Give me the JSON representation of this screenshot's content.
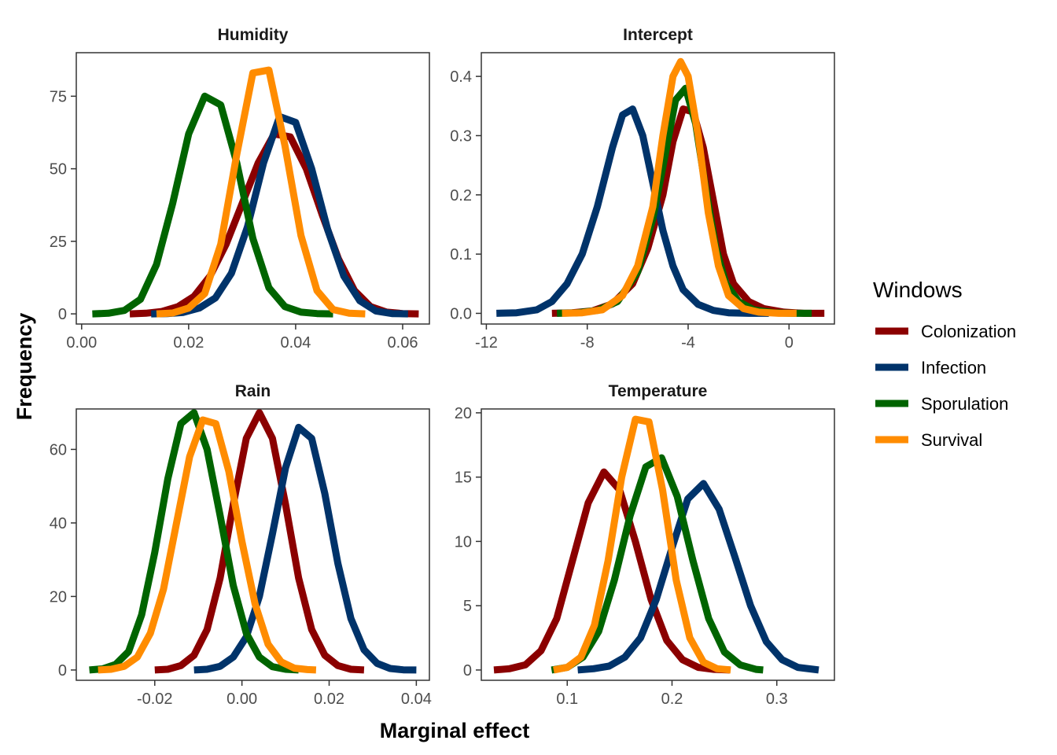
{
  "chart_data": {
    "type": "line",
    "xlabel": "Marginal effect",
    "ylabel": "Frequency",
    "legend": {
      "title": "Windows",
      "placement": "right",
      "entries": [
        "Colonization",
        "Infection",
        "Sporulation",
        "Survival"
      ]
    },
    "colors": {
      "Colonization": "#8b0000",
      "Infection": "#00336a",
      "Sporulation": "#006400",
      "Survival": "#ff8c00"
    },
    "grid": false,
    "panels": [
      {
        "title": "Humidity",
        "xlim": [
          -0.001,
          0.065
        ],
        "ylim": [
          -3.5,
          90
        ],
        "xticks": [
          0,
          0.02,
          0.04,
          0.06
        ],
        "xtick_labels": [
          "0.00",
          "0.02",
          "0.04",
          "0.06"
        ],
        "yticks": [
          0,
          25,
          50,
          75
        ],
        "ytick_labels": [
          "0",
          "25",
          "50",
          "75"
        ],
        "series": [
          {
            "name": "Colonization",
            "x": [
              0.009,
              0.012,
              0.015,
              0.018,
              0.021,
              0.024,
              0.027,
              0.03,
              0.033,
              0.036,
              0.039,
              0.042,
              0.045,
              0.048,
              0.051,
              0.054,
              0.057,
              0.06,
              0.063
            ],
            "y": [
              0.0,
              0.2,
              0.8,
              2.5,
              6,
              13,
              24,
              38,
              52,
              62,
              61,
              50,
              34,
              19,
              8,
              2.5,
              0.6,
              0.1,
              0.0
            ]
          },
          {
            "name": "Infection",
            "x": [
              0.013,
              0.016,
              0.019,
              0.022,
              0.025,
              0.028,
              0.031,
              0.034,
              0.037,
              0.04,
              0.043,
              0.046,
              0.049,
              0.052,
              0.055,
              0.058,
              0.061
            ],
            "y": [
              0.0,
              0.1,
              0.5,
              2,
              5.5,
              14,
              30,
              52,
              68,
              66,
              50,
              29,
              13,
              4.5,
              1,
              0.1,
              0.0
            ]
          },
          {
            "name": "Sporulation",
            "x": [
              0.002,
              0.005,
              0.008,
              0.011,
              0.014,
              0.017,
              0.02,
              0.023,
              0.026,
              0.029,
              0.032,
              0.035,
              0.038,
              0.041,
              0.044,
              0.047
            ],
            "y": [
              0.0,
              0.2,
              1.2,
              5,
              17,
              38,
              62,
              75,
              72,
              52,
              26,
              9,
              2.5,
              0.6,
              0.1,
              0.0
            ]
          },
          {
            "name": "Survival",
            "x": [
              0.014,
              0.017,
              0.02,
              0.023,
              0.026,
              0.029,
              0.032,
              0.035,
              0.038,
              0.041,
              0.044,
              0.047,
              0.05,
              0.053
            ],
            "y": [
              0.0,
              0.3,
              2,
              7,
              24,
              55,
              83,
              84,
              58,
              27,
              8,
              1.5,
              0.2,
              0.0
            ]
          }
        ]
      },
      {
        "title": "Intercept",
        "xlim": [
          -12.2,
          1.8
        ],
        "ylim": [
          -0.018,
          0.44
        ],
        "xticks": [
          -12,
          -8,
          -4,
          0
        ],
        "xtick_labels": [
          "-12",
          "-8",
          "-4",
          "0"
        ],
        "yticks": [
          0,
          0.1,
          0.2,
          0.3,
          0.4
        ],
        "ytick_labels": [
          "0.0",
          "0.1",
          "0.2",
          "0.3",
          "0.4"
        ],
        "series": [
          {
            "name": "Colonization",
            "x": [
              -9.4,
              -8.6,
              -7.8,
              -7.0,
              -6.2,
              -5.6,
              -5.0,
              -4.6,
              -4.2,
              -3.8,
              -3.4,
              -3.0,
              -2.6,
              -2.2,
              -1.6,
              -1.0,
              -0.2,
              0.6,
              1.4
            ],
            "y": [
              0.0,
              0.001,
              0.004,
              0.016,
              0.05,
              0.11,
              0.2,
              0.29,
              0.345,
              0.34,
              0.28,
              0.19,
              0.1,
              0.05,
              0.02,
              0.008,
              0.002,
              0.0,
              0.0
            ]
          },
          {
            "name": "Infection",
            "x": [
              -11.6,
              -10.8,
              -10.0,
              -9.4,
              -8.8,
              -8.2,
              -7.6,
              -7.0,
              -6.6,
              -6.2,
              -5.8,
              -5.4,
              -5.0,
              -4.6,
              -4.2,
              -3.6,
              -3.0,
              -2.4,
              -1.6,
              -0.8
            ],
            "y": [
              0.0,
              0.001,
              0.006,
              0.02,
              0.05,
              0.1,
              0.18,
              0.28,
              0.335,
              0.345,
              0.3,
              0.22,
              0.14,
              0.08,
              0.04,
              0.015,
              0.005,
              0.001,
              0.0,
              0.0
            ]
          },
          {
            "name": "Sporulation",
            "x": [
              -9.2,
              -8.4,
              -7.6,
              -6.8,
              -6.0,
              -5.4,
              -4.9,
              -4.5,
              -4.1,
              -3.7,
              -3.3,
              -2.9,
              -2.5,
              -2.0,
              -1.4,
              -0.6,
              0.2,
              0.9
            ],
            "y": [
              0.0,
              0.001,
              0.005,
              0.02,
              0.07,
              0.16,
              0.27,
              0.36,
              0.38,
              0.32,
              0.21,
              0.11,
              0.05,
              0.02,
              0.006,
              0.001,
              0.0,
              0.0
            ]
          },
          {
            "name": "Survival",
            "x": [
              -9.0,
              -8.2,
              -7.4,
              -6.6,
              -6.0,
              -5.4,
              -5.0,
              -4.6,
              -4.3,
              -4.0,
              -3.6,
              -3.2,
              -2.8,
              -2.4,
              -1.8,
              -1.2,
              -0.4,
              0.3
            ],
            "y": [
              0.0,
              0.001,
              0.006,
              0.03,
              0.08,
              0.18,
              0.3,
              0.4,
              0.425,
              0.4,
              0.3,
              0.17,
              0.08,
              0.03,
              0.008,
              0.002,
              0.0,
              0.0
            ]
          }
        ]
      },
      {
        "title": "Rain",
        "xlim": [
          -0.038,
          0.043
        ],
        "ylim": [
          -2.8,
          71
        ],
        "xticks": [
          -0.02,
          0,
          0.02,
          0.04
        ],
        "xtick_labels": [
          "-0.02",
          "0.00",
          "0.02",
          "0.04"
        ],
        "yticks": [
          0,
          20,
          40,
          60
        ],
        "ytick_labels": [
          "0",
          "20",
          "40",
          "60"
        ],
        "series": [
          {
            "name": "Colonization",
            "x": [
              -0.02,
              -0.017,
              -0.014,
              -0.011,
              -0.008,
              -0.005,
              -0.002,
              0.001,
              0.004,
              0.007,
              0.01,
              0.013,
              0.016,
              0.019,
              0.022,
              0.025,
              0.028
            ],
            "y": [
              0.0,
              0.2,
              1.2,
              4,
              11,
              25,
              45,
              63,
              70,
              63,
              45,
              25,
              11,
              4,
              1.2,
              0.2,
              0.0
            ]
          },
          {
            "name": "Infection",
            "x": [
              -0.011,
              -0.008,
              -0.005,
              -0.002,
              0.001,
              0.004,
              0.007,
              0.01,
              0.013,
              0.016,
              0.019,
              0.022,
              0.025,
              0.028,
              0.031,
              0.034,
              0.037,
              0.04
            ],
            "y": [
              0.0,
              0.2,
              1,
              3.5,
              9,
              20,
              37,
              55,
              66,
              63,
              48,
              29,
              14,
              5.5,
              1.8,
              0.4,
              0.05,
              0.0
            ]
          },
          {
            "name": "Sporulation",
            "x": [
              -0.035,
              -0.032,
              -0.029,
              -0.026,
              -0.023,
              -0.02,
              -0.017,
              -0.014,
              -0.011,
              -0.008,
              -0.005,
              -0.002,
              0.001,
              0.004,
              0.007,
              0.01,
              0.013
            ],
            "y": [
              0.0,
              0.3,
              1.5,
              5,
              15,
              32,
              52,
              67,
              70,
              60,
              42,
              23,
              10,
              3.5,
              0.9,
              0.2,
              0.0
            ]
          },
          {
            "name": "Survival",
            "x": [
              -0.033,
              -0.03,
              -0.027,
              -0.024,
              -0.021,
              -0.018,
              -0.015,
              -0.012,
              -0.009,
              -0.006,
              -0.003,
              0.0,
              0.003,
              0.006,
              0.009,
              0.012,
              0.015,
              0.017
            ],
            "y": [
              0.0,
              0.2,
              1,
              3.5,
              10,
              22,
              40,
              58,
              68,
              67,
              54,
              35,
              18,
              7,
              2.2,
              0.5,
              0.1,
              0.0
            ]
          }
        ]
      },
      {
        "title": "Temperature",
        "xlim": [
          0.018,
          0.355
        ],
        "ylim": [
          -0.8,
          20.3
        ],
        "xticks": [
          0.1,
          0.2,
          0.3
        ],
        "xtick_labels": [
          "0.1",
          "0.2",
          "0.3"
        ],
        "yticks": [
          0,
          5,
          10,
          15,
          20
        ],
        "ytick_labels": [
          "0",
          "5",
          "10",
          "15",
          "20"
        ],
        "series": [
          {
            "name": "Colonization",
            "x": [
              0.03,
              0.045,
              0.06,
              0.075,
              0.09,
              0.105,
              0.12,
              0.135,
              0.15,
              0.165,
              0.18,
              0.195,
              0.21,
              0.225,
              0.24,
              0.255
            ],
            "y": [
              0.0,
              0.1,
              0.4,
              1.5,
              4,
              8.5,
              13,
              15.4,
              14,
              10,
              5.5,
              2.3,
              0.8,
              0.2,
              0.05,
              0.0
            ]
          },
          {
            "name": "Infection",
            "x": [
              0.11,
              0.125,
              0.14,
              0.155,
              0.17,
              0.185,
              0.2,
              0.215,
              0.23,
              0.245,
              0.26,
              0.275,
              0.29,
              0.305,
              0.32,
              0.34
            ],
            "y": [
              0.0,
              0.1,
              0.3,
              1,
              2.5,
              5.5,
              9.5,
              13.3,
              14.5,
              12.5,
              8.8,
              5,
              2.2,
              0.8,
              0.2,
              0.0
            ]
          },
          {
            "name": "Sporulation",
            "x": [
              0.085,
              0.1,
              0.115,
              0.13,
              0.145,
              0.16,
              0.175,
              0.19,
              0.205,
              0.22,
              0.235,
              0.25,
              0.265,
              0.28,
              0.287
            ],
            "y": [
              0.0,
              0.2,
              1,
              3,
              7,
              12,
              15.8,
              16.5,
              13.5,
              8.5,
              4,
              1.4,
              0.4,
              0.05,
              0.0
            ]
          },
          {
            "name": "Survival",
            "x": [
              0.087,
              0.1,
              0.113,
              0.126,
              0.139,
              0.152,
              0.165,
              0.178,
              0.191,
              0.204,
              0.217,
              0.23,
              0.243,
              0.256
            ],
            "y": [
              0.0,
              0.2,
              1,
              3.5,
              8.5,
              15,
              19.5,
              19.3,
              14,
              7,
              2.5,
              0.6,
              0.1,
              0.0
            ]
          }
        ]
      }
    ]
  }
}
